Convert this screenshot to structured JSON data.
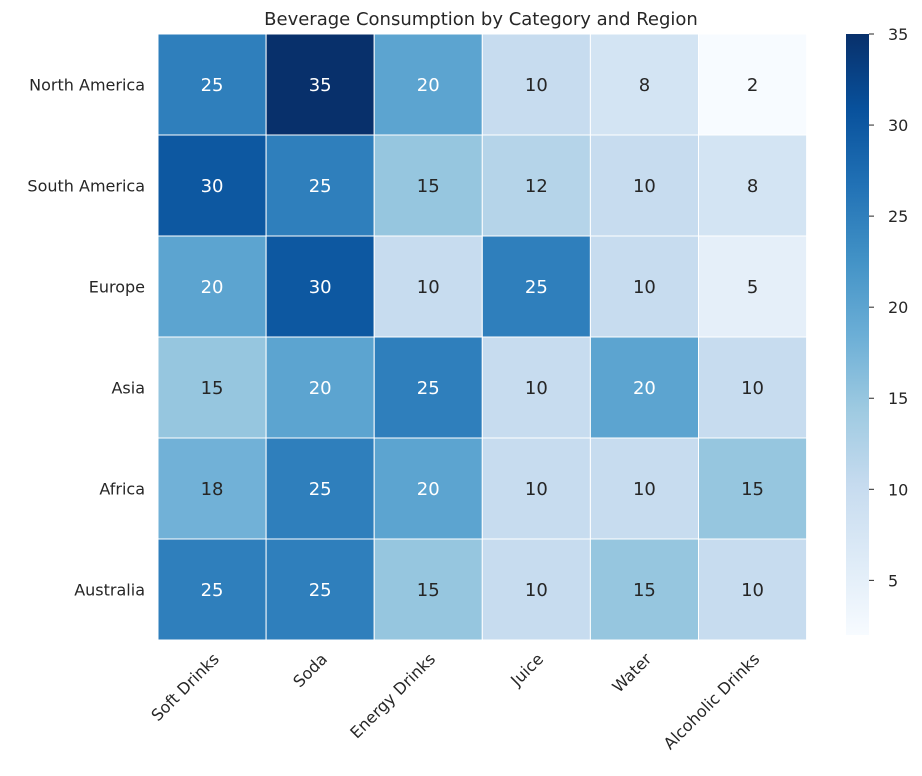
{
  "chart_data": {
    "type": "heatmap",
    "title": "Beverage Consumption by Category and Region",
    "rows": [
      "North America",
      "South America",
      "Europe",
      "Asia",
      "Africa",
      "Australia"
    ],
    "columns": [
      "Soft Drinks",
      "Soda",
      "Energy Drinks",
      "Juice",
      "Water",
      "Alcoholic Drinks"
    ],
    "values": [
      [
        25,
        35,
        20,
        10,
        8,
        2
      ],
      [
        30,
        25,
        15,
        12,
        10,
        8
      ],
      [
        20,
        30,
        10,
        25,
        10,
        5
      ],
      [
        15,
        20,
        25,
        10,
        20,
        10
      ],
      [
        18,
        25,
        20,
        10,
        10,
        15
      ],
      [
        25,
        25,
        15,
        10,
        15,
        10
      ]
    ],
    "colorbar": {
      "range": [
        2,
        35
      ],
      "ticks": [
        5,
        10,
        15,
        20,
        25,
        30,
        35
      ],
      "colormap": "Blues",
      "position": "right"
    },
    "annotations": "cell values shown",
    "grid": "white cell borders"
  }
}
